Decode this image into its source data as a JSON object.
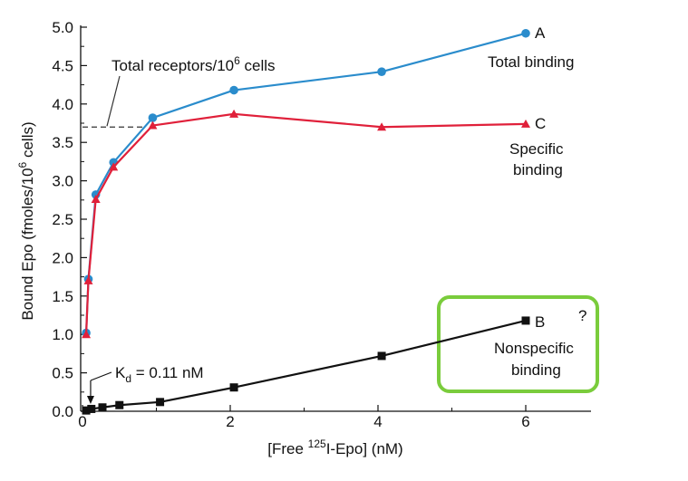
{
  "chart_data": {
    "type": "line",
    "xlabel_parts": [
      "[Free ",
      "125",
      "I-Epo] (nM)"
    ],
    "ylabel_parts": [
      "Bound Epo (fmoles/10",
      "6",
      " cells)"
    ],
    "xlim": [
      0,
      6.85
    ],
    "ylim": [
      0,
      5.0
    ],
    "xticks": [
      0,
      2,
      4,
      6
    ],
    "yticks": [
      0.0,
      0.5,
      1.0,
      1.5,
      2.0,
      2.5,
      3.0,
      3.5,
      4.0,
      4.5,
      5.0
    ],
    "ytick_labels": [
      "0.0",
      "0.5",
      "1.0",
      "1.5",
      "2.0",
      "2.5",
      "3.0",
      "3.5",
      "4.0",
      "4.5",
      "5.0"
    ],
    "grid": false,
    "series": [
      {
        "name": "Total binding",
        "label": "A",
        "color": "#2a8ccc",
        "marker": "circle",
        "x": [
          0.05,
          0.08,
          0.18,
          0.42,
          0.95,
          2.05,
          4.05,
          6.0
        ],
        "y": [
          1.02,
          1.72,
          2.82,
          3.24,
          3.82,
          4.18,
          4.42,
          4.92
        ]
      },
      {
        "name": "Specific binding",
        "label": "C",
        "color": "#e0203a",
        "marker": "triangle",
        "x": [
          0.05,
          0.08,
          0.18,
          0.42,
          0.95,
          2.05,
          4.05,
          6.0
        ],
        "y": [
          1.0,
          1.7,
          2.76,
          3.18,
          3.72,
          3.87,
          3.7,
          3.74
        ]
      },
      {
        "name": "Nonspecific binding",
        "label": "B",
        "color": "#111111",
        "marker": "square",
        "x": [
          0.05,
          0.12,
          0.27,
          0.5,
          1.05,
          2.05,
          4.05,
          6.0
        ],
        "y": [
          0.01,
          0.03,
          0.05,
          0.08,
          0.12,
          0.31,
          0.72,
          1.18
        ]
      }
    ],
    "annotations": {
      "total_receptors_parts": [
        "Total receptors/10",
        "6",
        " cells"
      ],
      "total_receptors_value": 3.7,
      "kd_parts": [
        "K",
        "d",
        " = 0.11 nM"
      ],
      "kd_value": 0.11,
      "label_A": "A",
      "label_total": "Total binding",
      "label_C": "C",
      "label_specific_1": "Specific",
      "label_specific_2": "binding",
      "label_B": "B",
      "label_nonspecific_1": "Nonspecific",
      "label_nonspecific_2": "binding",
      "question_mark": "?"
    },
    "highlight_color": "#7acc3c"
  }
}
